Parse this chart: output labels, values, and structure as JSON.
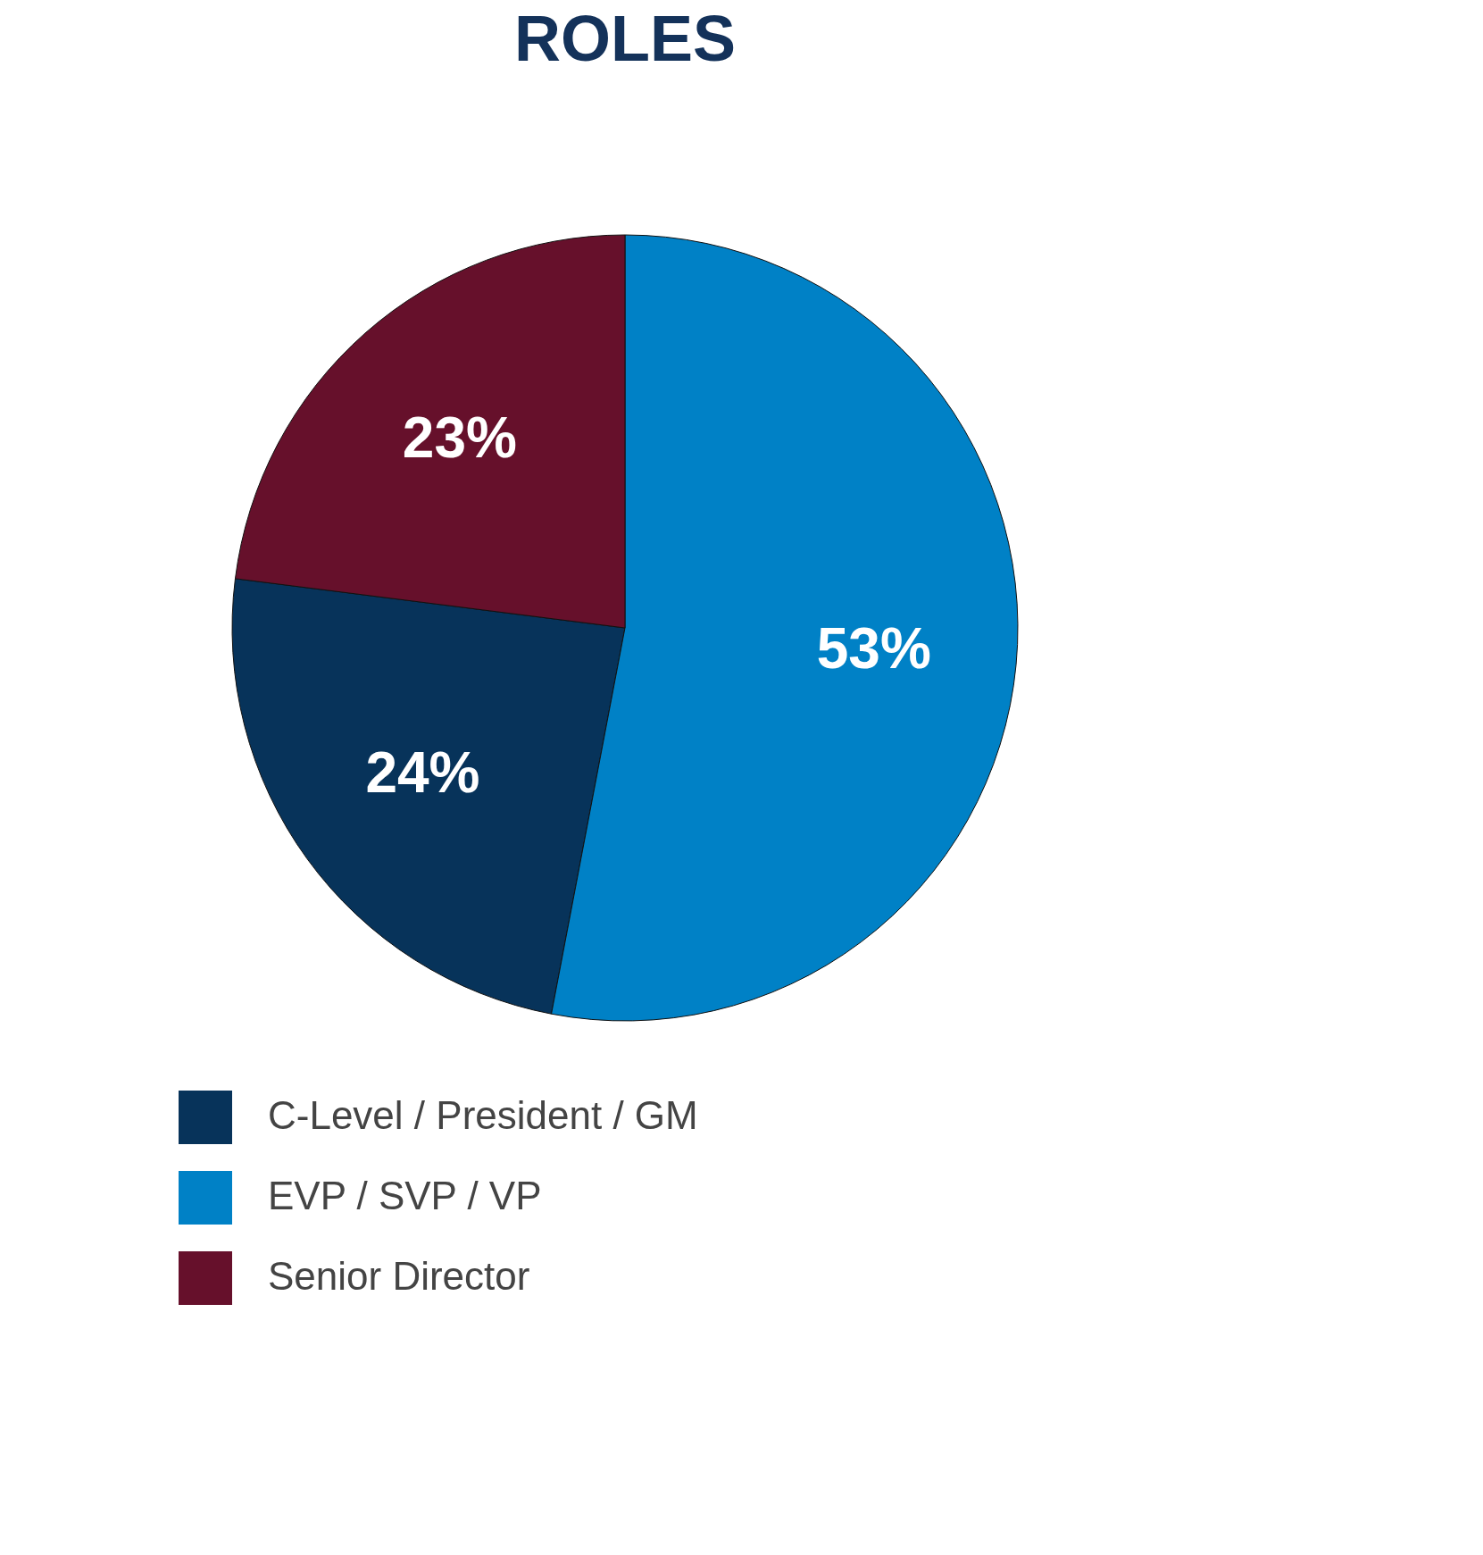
{
  "chart_data": {
    "type": "pie",
    "title": "ROLES",
    "categories": [
      "C-Level / President / GM",
      "EVP / SVP / VP",
      "Senior Director"
    ],
    "values": [
      24,
      53,
      23
    ],
    "colors": [
      "#07335a",
      "#0081c6",
      "#66102b"
    ],
    "value_labels": [
      "24%",
      "53%",
      "23%"
    ],
    "legend": "bottom"
  }
}
